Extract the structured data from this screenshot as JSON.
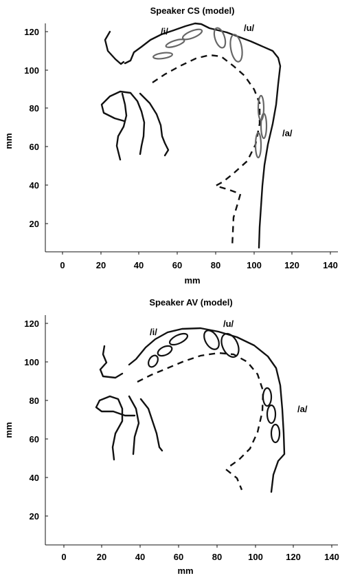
{
  "panels": [
    {
      "title": "Speaker CS (model)",
      "xlabel": "mm",
      "ylabel": "mm",
      "xticks": [
        "0",
        "20",
        "40",
        "60",
        "80",
        "100",
        "120",
        "140"
      ],
      "yticks": [
        "20",
        "40",
        "60",
        "80",
        "100",
        "120"
      ],
      "labels": {
        "i": "/i/",
        "u": "/u/",
        "a": "/a/"
      },
      "ellipse_color": "#666666"
    },
    {
      "title": "Speaker AV (model)",
      "xlabel": "mm",
      "ylabel": "mm",
      "xticks": [
        "0",
        "20",
        "40",
        "60",
        "80",
        "100",
        "120",
        "140"
      ],
      "yticks": [
        "20",
        "40",
        "60",
        "80",
        "100",
        "120"
      ],
      "labels": {
        "i": "/i/",
        "u": "/u/",
        "a": "/a/"
      },
      "ellipse_color": "#111111"
    }
  ]
}
